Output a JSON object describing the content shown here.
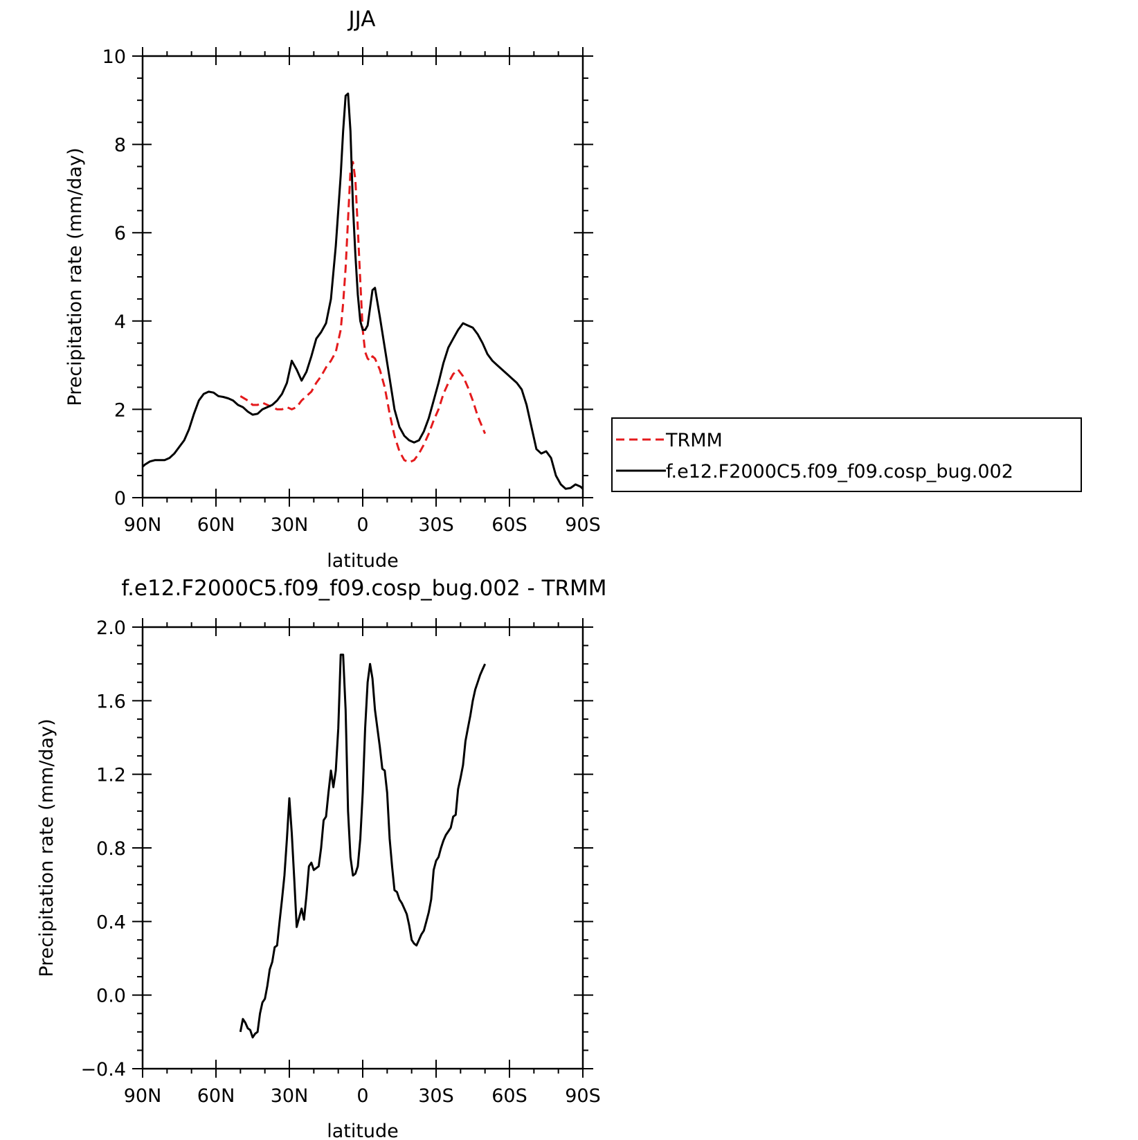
{
  "chart_data": [
    {
      "type": "line",
      "title": "JJA",
      "xlabel": "latitude",
      "ylabel": "Precipitation rate (mm/day)",
      "xlim": [
        90,
        -90
      ],
      "ylim": [
        0,
        10
      ],
      "x_tick_labels": [
        "90N",
        "60N",
        "30N",
        "0",
        "30S",
        "60S",
        "90S"
      ],
      "y_ticks": [
        0,
        2,
        4,
        6,
        8,
        10
      ],
      "y_tick_labels": [
        "0",
        "2",
        "4",
        "6",
        "8",
        "10"
      ],
      "grid": false,
      "legend_position": "right",
      "series": [
        {
          "name": "TRMM",
          "color": "#e41a1c",
          "dash": "dashed",
          "x": [
            50,
            47,
            45,
            43,
            41,
            39,
            37,
            35,
            33,
            31,
            29,
            27,
            25,
            23,
            21,
            19,
            17,
            15,
            13,
            11,
            9,
            8,
            7,
            6,
            5,
            4,
            3,
            2,
            1,
            0,
            -1,
            -2,
            -3,
            -4,
            -5,
            -7,
            -9,
            -11,
            -13,
            -15,
            -17,
            -19,
            -21,
            -23,
            -25,
            -27,
            -29,
            -31,
            -33,
            -35,
            -37,
            -39,
            -41,
            -43,
            -45,
            -47,
            -50
          ],
          "y": [
            2.3,
            2.2,
            2.1,
            2.1,
            2.15,
            2.1,
            2.05,
            2.0,
            2.0,
            2.05,
            2.0,
            2.05,
            2.2,
            2.3,
            2.4,
            2.6,
            2.75,
            2.95,
            3.1,
            3.3,
            3.8,
            4.4,
            5.2,
            6.3,
            7.4,
            7.6,
            7.2,
            6.1,
            4.9,
            3.8,
            3.3,
            3.15,
            3.1,
            3.2,
            3.15,
            2.9,
            2.5,
            1.9,
            1.4,
            1.05,
            0.85,
            0.8,
            0.85,
            1.0,
            1.2,
            1.45,
            1.75,
            2.0,
            2.35,
            2.6,
            2.8,
            2.9,
            2.75,
            2.5,
            2.2,
            1.85,
            1.45
          ]
        },
        {
          "name": "f.e12.F2000C5.f09_f09.cosp_bug.002",
          "color": "#000000",
          "dash": "solid",
          "x": [
            90,
            89,
            87,
            85,
            83,
            81,
            79,
            77,
            75,
            73,
            71,
            69,
            67,
            65,
            63,
            61,
            59,
            57,
            55,
            53,
            51,
            49,
            47,
            45,
            43,
            41,
            39,
            37,
            35,
            33,
            31,
            29,
            27,
            25,
            23,
            21,
            19,
            17,
            15,
            13,
            11,
            9,
            8,
            7,
            6,
            5,
            4,
            3,
            2,
            1,
            0,
            -1,
            -2,
            -3,
            -4,
            -5,
            -7,
            -9,
            -11,
            -13,
            -15,
            -17,
            -19,
            -21,
            -23,
            -25,
            -27,
            -29,
            -31,
            -33,
            -35,
            -37,
            -39,
            -41,
            -43,
            -45,
            -47,
            -49,
            -51,
            -53,
            -55,
            -57,
            -59,
            -61,
            -63,
            -65,
            -67,
            -69,
            -71,
            -73,
            -75,
            -77,
            -79,
            -81,
            -83,
            -85,
            -87,
            -89,
            -90
          ],
          "y": [
            0.7,
            0.75,
            0.82,
            0.85,
            0.85,
            0.85,
            0.9,
            1.0,
            1.15,
            1.3,
            1.55,
            1.9,
            2.2,
            2.35,
            2.4,
            2.38,
            2.3,
            2.28,
            2.25,
            2.2,
            2.1,
            2.05,
            1.95,
            1.88,
            1.9,
            2.0,
            2.05,
            2.1,
            2.2,
            2.35,
            2.6,
            3.1,
            2.9,
            2.65,
            2.85,
            3.2,
            3.6,
            3.75,
            3.95,
            4.5,
            5.7,
            7.3,
            8.3,
            9.1,
            9.15,
            8.3,
            6.6,
            5.5,
            4.6,
            4.0,
            3.8,
            3.8,
            3.9,
            4.3,
            4.7,
            4.75,
            4.1,
            3.4,
            2.7,
            2.0,
            1.6,
            1.4,
            1.3,
            1.25,
            1.3,
            1.5,
            1.8,
            2.2,
            2.6,
            3.05,
            3.4,
            3.6,
            3.8,
            3.95,
            3.9,
            3.85,
            3.7,
            3.5,
            3.25,
            3.1,
            3.0,
            2.9,
            2.8,
            2.7,
            2.6,
            2.45,
            2.1,
            1.6,
            1.1,
            1.0,
            1.05,
            0.9,
            0.5,
            0.3,
            0.2,
            0.22,
            0.3,
            0.25,
            0.2
          ]
        }
      ]
    },
    {
      "type": "line",
      "title": "f.e12.F2000C5.f09_f09.cosp_bug.002 - TRMM",
      "xlabel": "latitude",
      "ylabel": "Precipitation rate (mm/day)",
      "xlim": [
        90,
        -90
      ],
      "ylim": [
        -0.4,
        2.0
      ],
      "x_tick_labels": [
        "90N",
        "60N",
        "30N",
        "0",
        "30S",
        "60S",
        "90S"
      ],
      "y_ticks": [
        -0.4,
        0.0,
        0.4,
        0.8,
        1.2,
        1.6,
        2.0
      ],
      "y_tick_labels": [
        "−0.4",
        "0.0",
        "0.4",
        "0.8",
        "1.2",
        "1.6",
        "2.0"
      ],
      "grid": false,
      "series": [
        {
          "color": "#000000",
          "dash": "solid",
          "x": [
            50,
            49,
            48,
            47,
            46,
            45,
            44,
            43,
            42,
            41,
            40,
            39,
            38,
            37,
            36,
            35,
            34,
            33,
            32,
            31,
            30,
            29,
            28,
            27,
            26,
            25,
            24,
            23,
            22,
            21,
            20,
            19,
            18,
            17,
            16,
            15,
            14,
            13,
            12,
            11,
            10,
            9,
            8,
            7,
            6,
            5,
            4,
            3,
            2,
            1,
            0,
            -1,
            -2,
            -3,
            -4,
            -5,
            -6,
            -7,
            -8,
            -9,
            -10,
            -11,
            -12,
            -13,
            -14,
            -15,
            -16,
            -17,
            -18,
            -19,
            -20,
            -21,
            -22,
            -23,
            -24,
            -25,
            -26,
            -27,
            -28,
            -29,
            -30,
            -31,
            -32,
            -33,
            -34,
            -35,
            -36,
            -37,
            -38,
            -39,
            -40,
            -41,
            -42,
            -43,
            -44,
            -45,
            -46,
            -47,
            -48,
            -49,
            -50
          ],
          "y": [
            -0.2,
            -0.13,
            -0.15,
            -0.18,
            -0.19,
            -0.23,
            -0.21,
            -0.2,
            -0.1,
            -0.04,
            -0.02,
            0.05,
            0.14,
            0.18,
            0.26,
            0.27,
            0.4,
            0.52,
            0.65,
            0.85,
            1.07,
            0.88,
            0.63,
            0.37,
            0.42,
            0.47,
            0.41,
            0.54,
            0.7,
            0.72,
            0.68,
            0.69,
            0.7,
            0.8,
            0.95,
            0.97,
            1.1,
            1.22,
            1.13,
            1.22,
            1.45,
            1.85,
            1.85,
            1.55,
            1.0,
            0.75,
            0.65,
            0.66,
            0.7,
            0.85,
            1.1,
            1.45,
            1.7,
            1.8,
            1.72,
            1.55,
            1.45,
            1.35,
            1.23,
            1.22,
            1.1,
            0.85,
            0.7,
            0.57,
            0.56,
            0.52,
            0.5,
            0.47,
            0.44,
            0.38,
            0.3,
            0.28,
            0.27,
            0.3,
            0.33,
            0.35,
            0.4,
            0.45,
            0.52,
            0.68,
            0.73,
            0.75,
            0.8,
            0.84,
            0.87,
            0.89,
            0.91,
            0.97,
            0.98,
            1.12,
            1.18,
            1.25,
            1.38,
            1.45,
            1.52,
            1.6,
            1.66,
            1.7,
            1.74,
            1.77,
            1.8
          ]
        }
      ]
    }
  ]
}
